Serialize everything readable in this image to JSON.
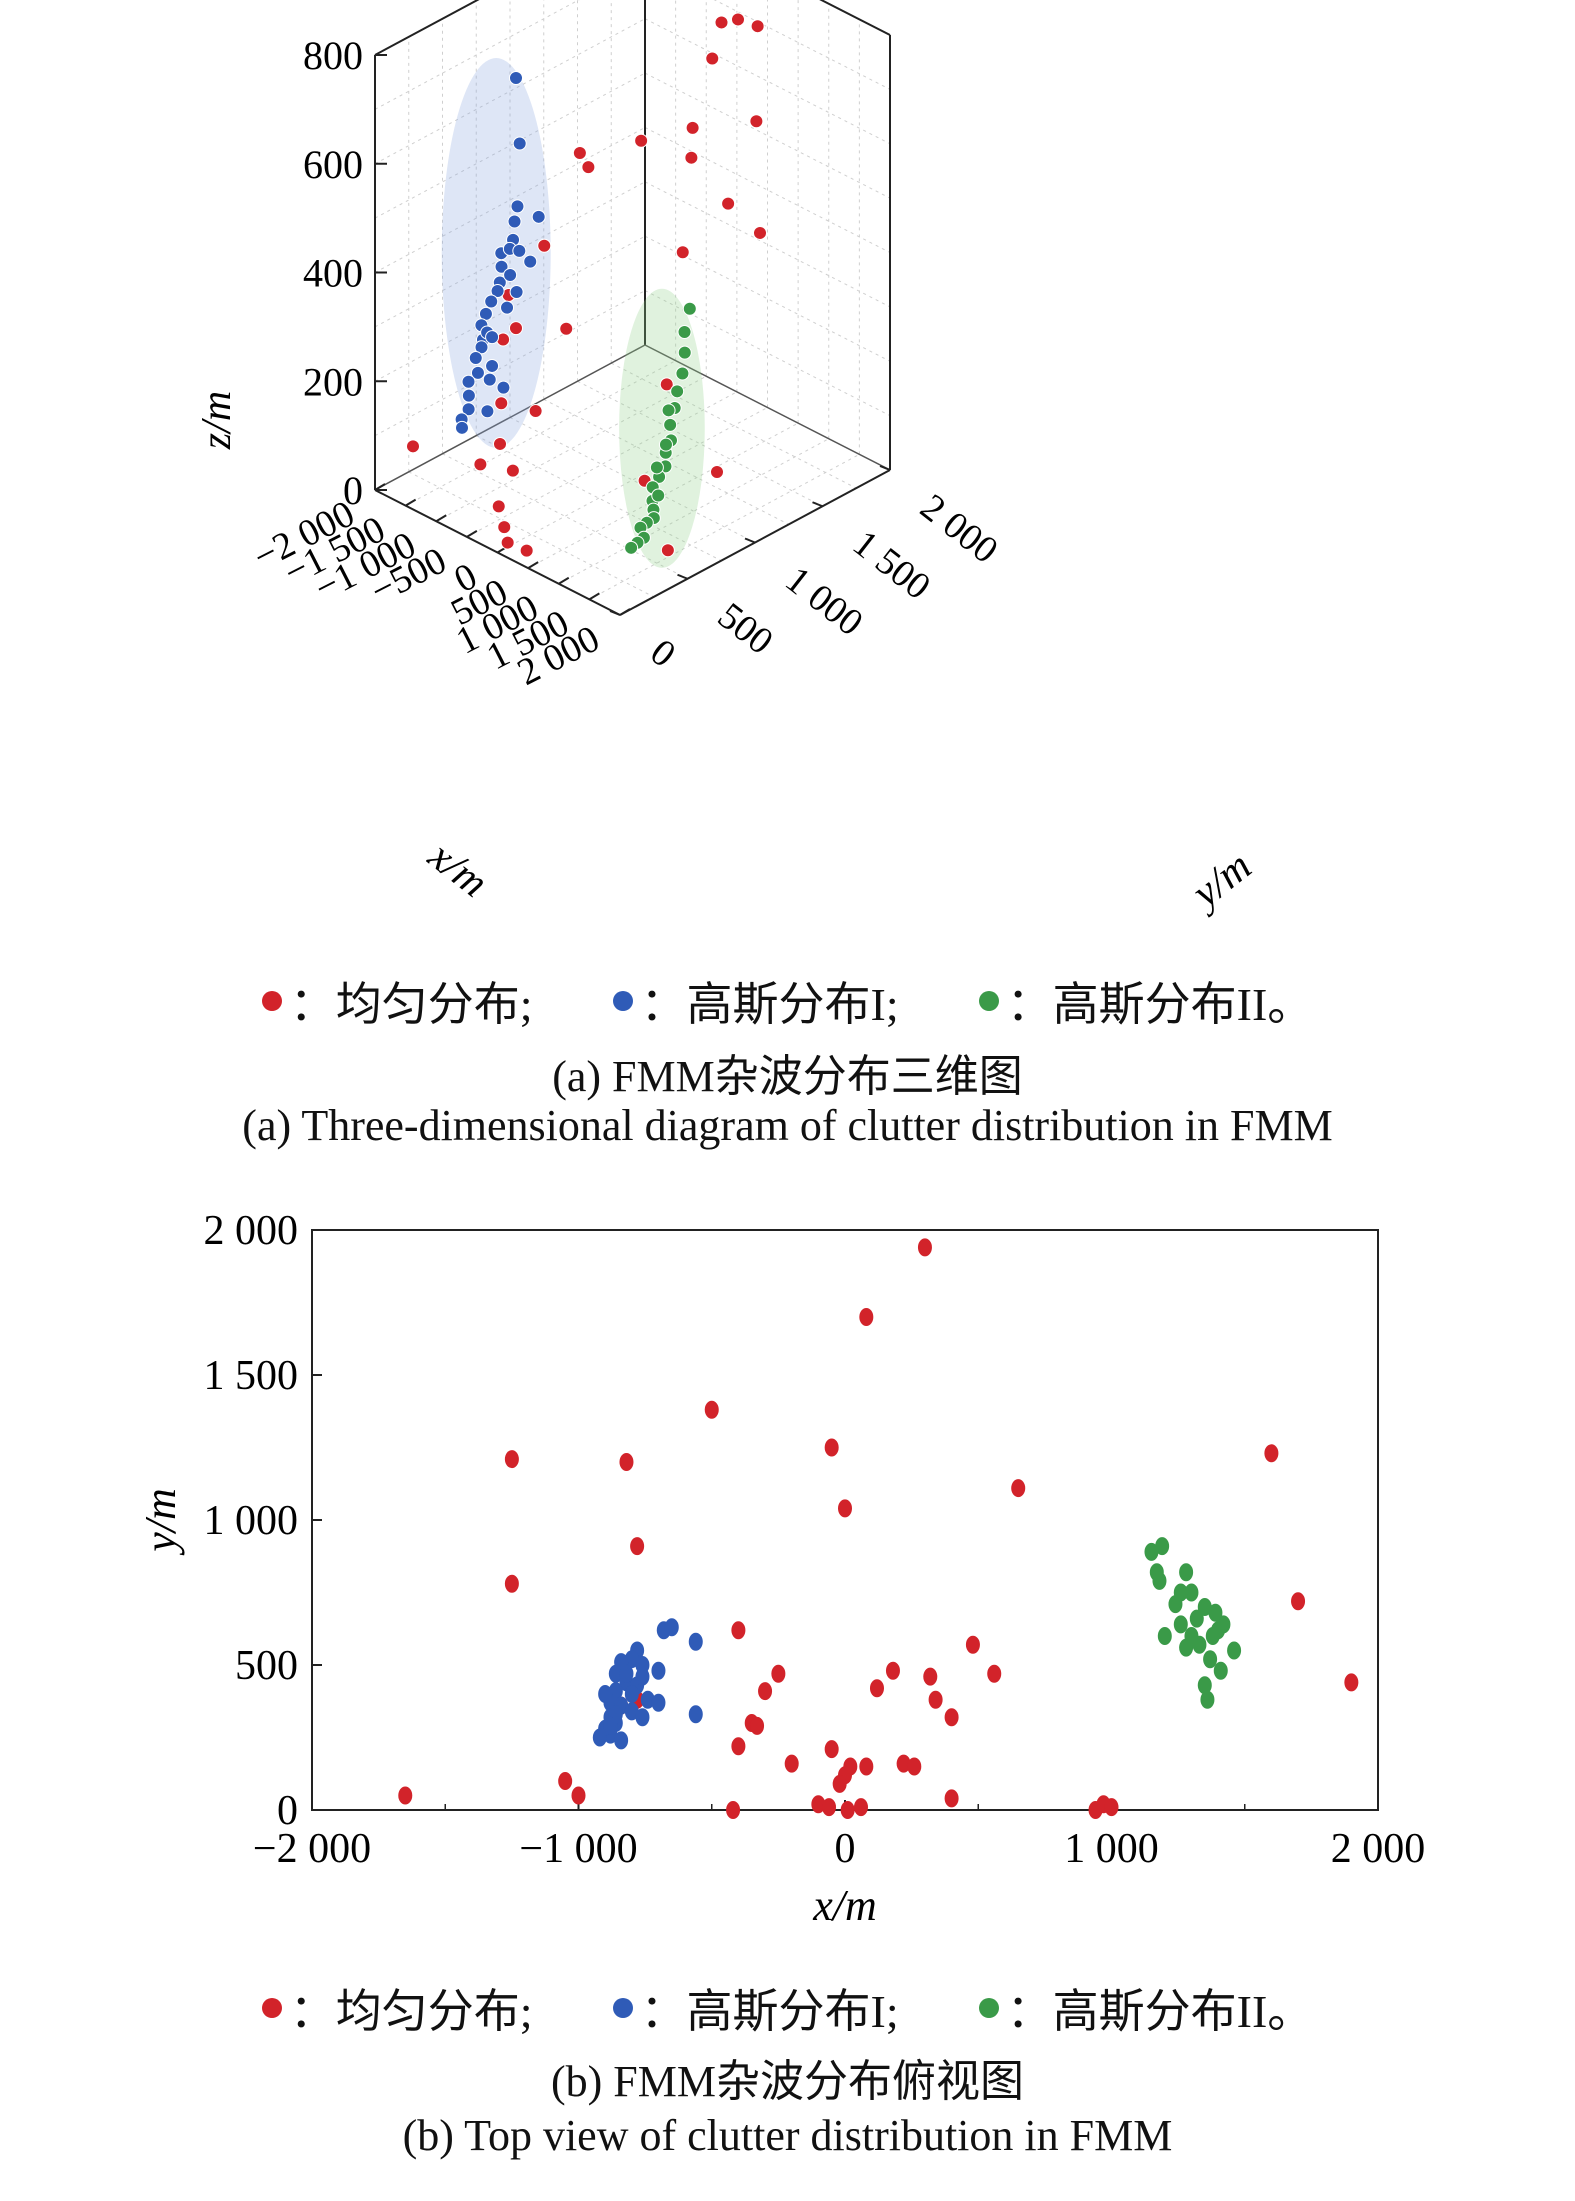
{
  "colors": {
    "uniform": "#d2232a",
    "gauss1": "#2f5bb7",
    "gauss2": "#3a9a48"
  },
  "legend": {
    "uniform": "：均匀分布;",
    "gauss1": "：高斯分布I;",
    "gauss2": "：高斯分布II。"
  },
  "captions": {
    "a_cn": "(a) FMM杂波分布三维图",
    "a_en": "(a) Three-dimensional diagram of clutter distribution in FMM",
    "b_cn": "(b) FMM杂波分布俯视图",
    "b_en": "(b) Top view of clutter distribution in FMM"
  },
  "chart_data": [
    {
      "type": "scatter3d",
      "title": "",
      "xlabel": "x/m",
      "ylabel": "y/m",
      "zlabel": "z/m",
      "xlim": [
        -2000,
        2000
      ],
      "ylim": [
        0,
        2000
      ],
      "zlim": [
        0,
        800
      ],
      "xticks": [
        "−2 000",
        "−1 500",
        "−1 000",
        "−500",
        "0",
        "500",
        "1 000",
        "1 500",
        "2 000"
      ],
      "yticks": [
        "0",
        "500",
        "1 000",
        "1 500",
        "2 000"
      ],
      "zticks": [
        "0",
        "200",
        "400",
        "600",
        "800"
      ],
      "series": [
        {
          "name": "均匀分布",
          "color": "#d2232a",
          "points": [
            [
              -100,
              1950,
              800
            ],
            [
              -150,
              1900,
              780
            ],
            [
              -50,
              1920,
              770
            ],
            [
              400,
              1600,
              790
            ],
            [
              500,
              1700,
              770
            ],
            [
              -200,
              1750,
              730
            ],
            [
              200,
              1500,
              720
            ],
            [
              -300,
              1200,
              580
            ],
            [
              100,
              1400,
              600
            ],
            [
              300,
              1300,
              570
            ],
            [
              -500,
              900,
              560
            ],
            [
              700,
              1600,
              620
            ],
            [
              1200,
              1400,
              470
            ],
            [
              900,
              1300,
              520
            ],
            [
              600,
              1100,
              440
            ],
            [
              -1300,
              1200,
              500
            ],
            [
              -1000,
              800,
              400
            ],
            [
              -800,
              500,
              300
            ],
            [
              -700,
              400,
              380
            ],
            [
              -900,
              450,
              280
            ],
            [
              -600,
              300,
              200
            ],
            [
              -400,
              200,
              150
            ],
            [
              -700,
              600,
              140
            ],
            [
              -500,
              100,
              120
            ],
            [
              -300,
              250,
              100
            ],
            [
              -1600,
              100,
              90
            ],
            [
              -200,
              100,
              60
            ],
            [
              0,
              50,
              40
            ],
            [
              100,
              30,
              20
            ],
            [
              300,
              80,
              10
            ],
            [
              1000,
              800,
              260
            ],
            [
              1600,
              900,
              120
            ],
            [
              1900,
              400,
              60
            ],
            [
              1300,
              500,
              140
            ],
            [
              -200,
              600,
              320
            ]
          ]
        },
        {
          "name": "高斯分布I",
          "color": "#2f5bb7",
          "points": [
            [
              -800,
              500,
              760
            ],
            [
              -850,
              550,
              630
            ],
            [
              -820,
              520,
              520
            ],
            [
              -780,
              480,
              500
            ],
            [
              -760,
              460,
              470
            ],
            [
              -820,
              400,
              450
            ],
            [
              -860,
              420,
              420
            ],
            [
              -800,
              380,
              400
            ],
            [
              -770,
              350,
              390
            ],
            [
              -830,
              330,
              370
            ],
            [
              -850,
              300,
              350
            ],
            [
              -880,
              280,
              330
            ],
            [
              -810,
              260,
              310
            ],
            [
              -790,
              240,
              300
            ],
            [
              -840,
              220,
              280
            ],
            [
              -760,
              200,
              260
            ],
            [
              -870,
              180,
              240
            ],
            [
              -820,
              160,
              220
            ],
            [
              -780,
              140,
              200
            ],
            [
              -850,
              120,
              180
            ],
            [
              -800,
              100,
              170
            ],
            [
              -770,
              420,
              350
            ],
            [
              -700,
              560,
              420
            ],
            [
              -650,
              600,
              500
            ],
            [
              -900,
              500,
              440
            ],
            [
              -750,
              300,
              260
            ],
            [
              -720,
              250,
              330
            ],
            [
              -680,
              450,
              380
            ],
            [
              -860,
              350,
              300
            ],
            [
              -830,
              470,
              400
            ],
            [
              -790,
              520,
              440
            ],
            [
              -810,
              310,
              230
            ],
            [
              -740,
              380,
              210
            ],
            [
              -760,
              270,
              180
            ]
          ]
        },
        {
          "name": "高斯分布II",
          "color": "#3a9a48",
          "points": [
            [
              1200,
              880,
              400
            ],
            [
              1180,
              850,
              360
            ],
            [
              1250,
              820,
              330
            ],
            [
              1300,
              780,
              300
            ],
            [
              1280,
              750,
              270
            ],
            [
              1350,
              700,
              250
            ],
            [
              1320,
              680,
              220
            ],
            [
              1400,
              650,
              200
            ],
            [
              1380,
              620,
              180
            ],
            [
              1420,
              600,
              160
            ],
            [
              1360,
              580,
              140
            ],
            [
              1300,
              560,
              120
            ],
            [
              1340,
              540,
              100
            ],
            [
              1400,
              520,
              90
            ],
            [
              1450,
              500,
              80
            ],
            [
              1380,
              480,
              70
            ],
            [
              1320,
              460,
              60
            ],
            [
              1420,
              440,
              50
            ],
            [
              1360,
              420,
              40
            ],
            [
              1300,
              400,
              30
            ],
            [
              1250,
              700,
              240
            ],
            [
              1340,
              640,
              190
            ],
            [
              1390,
              560,
              110
            ],
            [
              1280,
              600,
              150
            ]
          ]
        }
      ]
    },
    {
      "type": "scatter",
      "title": "",
      "xlabel": "x/m",
      "ylabel": "y/m",
      "xlim": [
        -2000,
        2000
      ],
      "ylim": [
        0,
        2000
      ],
      "xticks": [
        "−2 000",
        "−1 000",
        "0",
        "1 000",
        "2 000"
      ],
      "yticks": [
        "0",
        "500",
        "1 000",
        "1 500",
        "2 000"
      ],
      "series": [
        {
          "name": "均匀分布",
          "color": "#d2232a",
          "points": [
            [
              300,
              1940
            ],
            [
              80,
              1700
            ],
            [
              -500,
              1380
            ],
            [
              -1250,
              1210
            ],
            [
              -820,
              1200
            ],
            [
              -50,
              1250
            ],
            [
              1600,
              1230
            ],
            [
              650,
              1110
            ],
            [
              0,
              1040
            ],
            [
              -780,
              910
            ],
            [
              -1250,
              780
            ],
            [
              1700,
              720
            ],
            [
              1900,
              440
            ],
            [
              -400,
              620
            ],
            [
              480,
              570
            ],
            [
              560,
              470
            ],
            [
              180,
              480
            ],
            [
              320,
              460
            ],
            [
              -250,
              470
            ],
            [
              -300,
              410
            ],
            [
              120,
              420
            ],
            [
              340,
              380
            ],
            [
              400,
              320
            ],
            [
              -350,
              300
            ],
            [
              -400,
              220
            ],
            [
              -330,
              290
            ],
            [
              -50,
              210
            ],
            [
              20,
              150
            ],
            [
              0,
              120
            ],
            [
              -20,
              90
            ],
            [
              220,
              160
            ],
            [
              260,
              150
            ],
            [
              80,
              150
            ],
            [
              -200,
              160
            ],
            [
              -1050,
              100
            ],
            [
              -1000,
              50
            ],
            [
              -1650,
              50
            ],
            [
              -100,
              20
            ],
            [
              -60,
              10
            ],
            [
              10,
              0
            ],
            [
              60,
              10
            ],
            [
              400,
              40
            ],
            [
              940,
              0
            ],
            [
              970,
              20
            ],
            [
              1000,
              10
            ],
            [
              -420,
              0
            ],
            [
              -780,
              380
            ],
            [
              -840,
              360
            ]
          ]
        },
        {
          "name": "高斯分布I",
          "color": "#2f5bb7",
          "points": [
            [
              -680,
              620
            ],
            [
              -650,
              630
            ],
            [
              -560,
              580
            ],
            [
              -780,
              550
            ],
            [
              -800,
              520
            ],
            [
              -840,
              510
            ],
            [
              -760,
              500
            ],
            [
              -700,
              480
            ],
            [
              -860,
              470
            ],
            [
              -820,
              440
            ],
            [
              -780,
              430
            ],
            [
              -860,
              410
            ],
            [
              -800,
              400
            ],
            [
              -740,
              380
            ],
            [
              -880,
              370
            ],
            [
              -840,
              360
            ],
            [
              -800,
              340
            ],
            [
              -880,
              320
            ],
            [
              -860,
              300
            ],
            [
              -900,
              280
            ],
            [
              -880,
              260
            ],
            [
              -920,
              250
            ],
            [
              -840,
              240
            ],
            [
              -760,
              320
            ],
            [
              -700,
              370
            ],
            [
              -900,
              400
            ],
            [
              -560,
              330
            ],
            [
              -820,
              470
            ],
            [
              -760,
              460
            ],
            [
              -860,
              330
            ],
            [
              -880,
              290
            ]
          ]
        },
        {
          "name": "高斯分布II",
          "color": "#3a9a48",
          "points": [
            [
              1150,
              890
            ],
            [
              1190,
              910
            ],
            [
              1170,
              820
            ],
            [
              1180,
              790
            ],
            [
              1280,
              820
            ],
            [
              1260,
              750
            ],
            [
              1300,
              750
            ],
            [
              1350,
              700
            ],
            [
              1390,
              680
            ],
            [
              1420,
              640
            ],
            [
              1200,
              600
            ],
            [
              1300,
              600
            ],
            [
              1280,
              560
            ],
            [
              1330,
              570
            ],
            [
              1380,
              600
            ],
            [
              1460,
              550
            ],
            [
              1370,
              520
            ],
            [
              1410,
              480
            ],
            [
              1350,
              430
            ],
            [
              1360,
              380
            ],
            [
              1260,
              640
            ],
            [
              1320,
              660
            ],
            [
              1240,
              710
            ],
            [
              1400,
              620
            ]
          ]
        }
      ]
    }
  ]
}
